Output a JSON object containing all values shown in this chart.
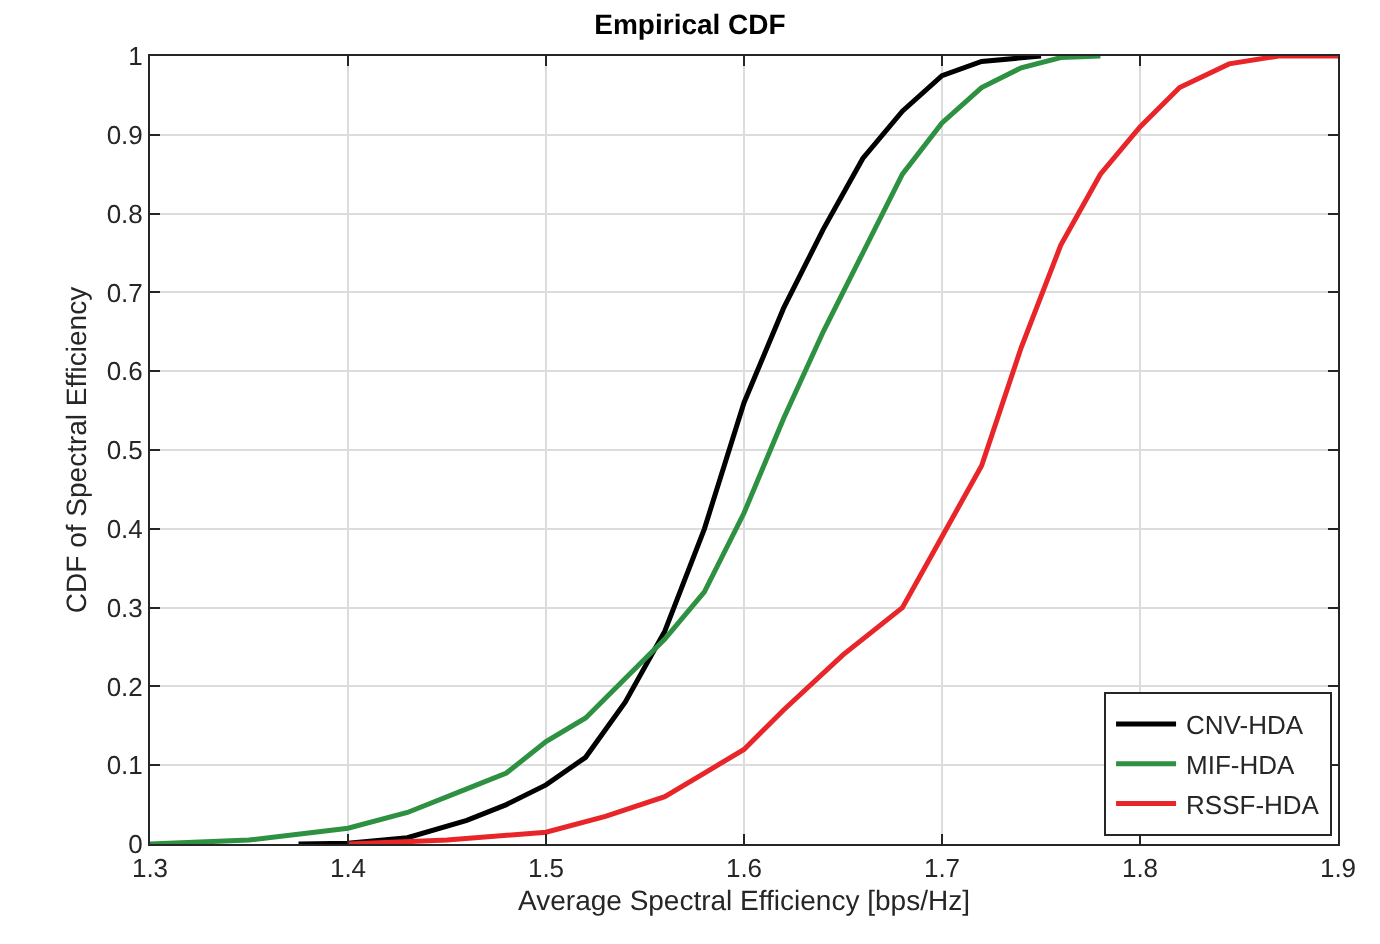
{
  "chart_data": {
    "type": "line",
    "title": "Empirical CDF",
    "xlabel": "Average Spectral Efficiency [bps/Hz]",
    "ylabel": "CDF of Spectral Efficiency",
    "xlim": [
      1.3,
      1.9
    ],
    "xticks": [
      1.3,
      1.4,
      1.5,
      1.6,
      1.7,
      1.8,
      1.9
    ],
    "ylim": [
      0,
      1
    ],
    "yticks": [
      0,
      0.1,
      0.2,
      0.3,
      0.4,
      0.5,
      0.6,
      0.7,
      0.8,
      0.9,
      1
    ],
    "grid": true,
    "legend": "bottom right",
    "marker": "none",
    "line_style": "solid",
    "series": [
      {
        "name": "CNV-HDA",
        "color": "#000000",
        "x": [
          1.375,
          1.4,
          1.43,
          1.46,
          1.48,
          1.5,
          1.52,
          1.54,
          1.56,
          1.58,
          1.6,
          1.62,
          1.64,
          1.66,
          1.68,
          1.7,
          1.72,
          1.75
        ],
        "values": [
          0,
          0.001,
          0.008,
          0.03,
          0.05,
          0.075,
          0.11,
          0.18,
          0.27,
          0.4,
          0.56,
          0.68,
          0.78,
          0.87,
          0.93,
          0.975,
          0.993,
          1
        ]
      },
      {
        "name": "MIF-HDA",
        "color": "#2e9142",
        "x": [
          1.3,
          1.35,
          1.4,
          1.43,
          1.46,
          1.48,
          1.5,
          1.52,
          1.54,
          1.56,
          1.58,
          1.6,
          1.62,
          1.64,
          1.66,
          1.68,
          1.7,
          1.72,
          1.74,
          1.76,
          1.78
        ],
        "values": [
          0,
          0.005,
          0.02,
          0.04,
          0.07,
          0.09,
          0.13,
          0.16,
          0.21,
          0.26,
          0.32,
          0.42,
          0.54,
          0.65,
          0.75,
          0.85,
          0.915,
          0.96,
          0.985,
          0.998,
          1
        ]
      },
      {
        "name": "RSSF-HDA",
        "color": "#e8262a",
        "x": [
          1.4,
          1.45,
          1.5,
          1.53,
          1.56,
          1.58,
          1.6,
          1.62,
          1.65,
          1.68,
          1.7,
          1.72,
          1.74,
          1.76,
          1.78,
          1.8,
          1.82,
          1.845,
          1.87,
          1.9
        ],
        "values": [
          0,
          0.005,
          0.015,
          0.035,
          0.06,
          0.09,
          0.12,
          0.17,
          0.24,
          0.3,
          0.39,
          0.48,
          0.63,
          0.76,
          0.85,
          0.91,
          0.96,
          0.99,
          1,
          1
        ]
      }
    ]
  }
}
